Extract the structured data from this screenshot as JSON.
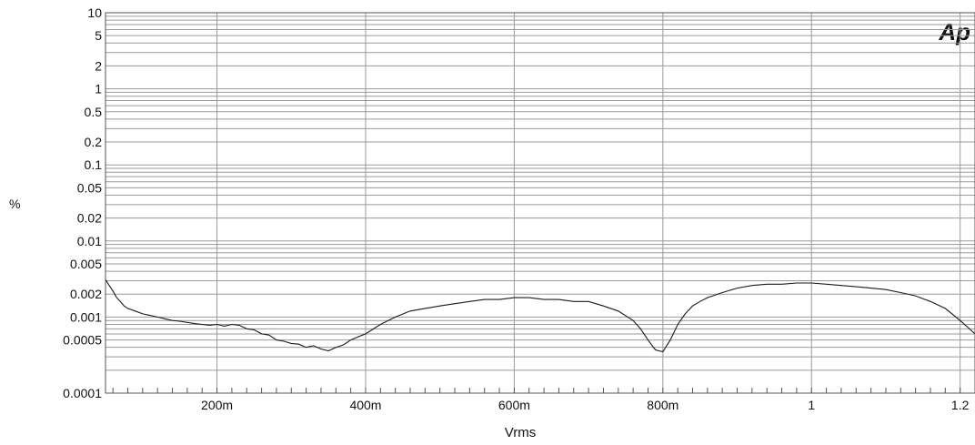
{
  "chart_data": {
    "type": "line",
    "title": "",
    "xlabel": "Vrms",
    "ylabel": "%",
    "logo": "Ap",
    "x_scale": "linear",
    "y_scale": "log",
    "xlim": [
      0.05,
      1.22
    ],
    "ylim": [
      0.0001,
      10
    ],
    "x_ticks": [
      {
        "value": 0.2,
        "label": "200m"
      },
      {
        "value": 0.4,
        "label": "400m"
      },
      {
        "value": 0.6,
        "label": "600m"
      },
      {
        "value": 0.8,
        "label": "800m"
      },
      {
        "value": 1.0,
        "label": "1"
      },
      {
        "value": 1.2,
        "label": "1.2"
      }
    ],
    "y_ticks": [
      {
        "value": 10,
        "label": "10"
      },
      {
        "value": 5,
        "label": "5"
      },
      {
        "value": 2,
        "label": "2"
      },
      {
        "value": 1,
        "label": "1"
      },
      {
        "value": 0.5,
        "label": "0.5"
      },
      {
        "value": 0.2,
        "label": "0.2"
      },
      {
        "value": 0.1,
        "label": "0.1"
      },
      {
        "value": 0.05,
        "label": "0.05"
      },
      {
        "value": 0.02,
        "label": "0.02"
      },
      {
        "value": 0.01,
        "label": "0.01"
      },
      {
        "value": 0.005,
        "label": "0.005"
      },
      {
        "value": 0.002,
        "label": "0.002"
      },
      {
        "value": 0.001,
        "label": "0.001"
      },
      {
        "value": 0.0005,
        "label": "0.0005"
      },
      {
        "value": 0.0001,
        "label": "0.0001"
      }
    ],
    "grid": true,
    "line_color": "#1a1a1a",
    "grid_color": "#9a9a9a",
    "series": [
      {
        "x": [
          0.05,
          0.055,
          0.06,
          0.065,
          0.07,
          0.075,
          0.08,
          0.09,
          0.1,
          0.11,
          0.12,
          0.13,
          0.14,
          0.15,
          0.16,
          0.17,
          0.18,
          0.19,
          0.2,
          0.21,
          0.22,
          0.23,
          0.24,
          0.25,
          0.26,
          0.27,
          0.28,
          0.29,
          0.3,
          0.31,
          0.32,
          0.33,
          0.34,
          0.35,
          0.36,
          0.37,
          0.38,
          0.39,
          0.4,
          0.42,
          0.44,
          0.46,
          0.48,
          0.5,
          0.52,
          0.54,
          0.56,
          0.58,
          0.6,
          0.62,
          0.64,
          0.66,
          0.68,
          0.7,
          0.72,
          0.74,
          0.76,
          0.77,
          0.78,
          0.79,
          0.8,
          0.81,
          0.82,
          0.83,
          0.84,
          0.85,
          0.86,
          0.88,
          0.9,
          0.92,
          0.94,
          0.96,
          0.98,
          1.0,
          1.02,
          1.04,
          1.06,
          1.08,
          1.1,
          1.12,
          1.14,
          1.16,
          1.18,
          1.2,
          1.22
        ],
        "y": [
          0.0031,
          0.0026,
          0.0022,
          0.0018,
          0.0016,
          0.0014,
          0.0013,
          0.0012,
          0.0011,
          0.00105,
          0.001,
          0.00095,
          0.0009,
          0.00088,
          0.00085,
          0.00082,
          0.0008,
          0.00078,
          0.0008,
          0.00076,
          0.0008,
          0.00078,
          0.0007,
          0.00068,
          0.0006,
          0.00058,
          0.0005,
          0.00048,
          0.00045,
          0.00044,
          0.0004,
          0.00042,
          0.00038,
          0.00036,
          0.0004,
          0.00043,
          0.0005,
          0.00055,
          0.0006,
          0.0008,
          0.001,
          0.0012,
          0.0013,
          0.0014,
          0.0015,
          0.0016,
          0.0017,
          0.0017,
          0.0018,
          0.0018,
          0.0017,
          0.0017,
          0.0016,
          0.0016,
          0.0014,
          0.0012,
          0.0009,
          0.0007,
          0.0005,
          0.00037,
          0.00035,
          0.0005,
          0.0008,
          0.0011,
          0.0014,
          0.0016,
          0.0018,
          0.0021,
          0.0024,
          0.0026,
          0.0027,
          0.0027,
          0.0028,
          0.0028,
          0.0027,
          0.0026,
          0.0025,
          0.0024,
          0.0023,
          0.0021,
          0.0019,
          0.0016,
          0.0013,
          0.0009,
          0.0006
        ]
      }
    ]
  }
}
